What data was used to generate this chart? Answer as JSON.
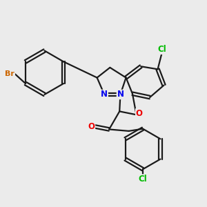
{
  "background_color": "#ebebeb",
  "bond_color": "#1a1a1a",
  "atom_colors": {
    "Br": "#cc6600",
    "Cl": "#00bb00",
    "N": "#0000ee",
    "O": "#ee0000"
  },
  "figsize": [
    3.0,
    3.0
  ],
  "dpi": 100
}
